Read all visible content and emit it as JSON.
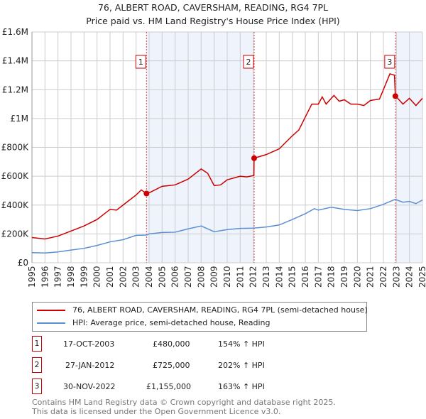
{
  "chart_data": {
    "type": "line",
    "title": "76, ALBERT ROAD, CAVERSHAM, READING, RG4 7PL",
    "subtitle": "Price paid vs. HM Land Registry's House Price Index (HPI)",
    "xlim": [
      1995,
      2025
    ],
    "ylim": [
      0,
      1600000
    ],
    "y_ticks": [
      {
        "v": 0,
        "l": "£0"
      },
      {
        "v": 200000,
        "l": "£200K"
      },
      {
        "v": 400000,
        "l": "£400K"
      },
      {
        "v": 600000,
        "l": "£600K"
      },
      {
        "v": 800000,
        "l": "£800K"
      },
      {
        "v": 1000000,
        "l": "£1M"
      },
      {
        "v": 1200000,
        "l": "£1.2M"
      },
      {
        "v": 1400000,
        "l": "£1.4M"
      },
      {
        "v": 1600000,
        "l": "£1.6M"
      }
    ],
    "x_ticks": [
      "1995",
      "1996",
      "1997",
      "1998",
      "1999",
      "2000",
      "2001",
      "2002",
      "2003",
      "2004",
      "2005",
      "2006",
      "2007",
      "2008",
      "2009",
      "2010",
      "2011",
      "2012",
      "2013",
      "2014",
      "2015",
      "2016",
      "2017",
      "2018",
      "2019",
      "2020",
      "2021",
      "2022",
      "2023",
      "2024",
      "2025"
    ],
    "grid": true,
    "shaded": [
      [
        2003.8,
        2012.07
      ],
      [
        2022.92,
        2025
      ]
    ],
    "series": [
      {
        "name": "76, ALBERT ROAD, CAVERSHAM, READING, RG4 7PL (semi-detached house)",
        "color": "#cc0000",
        "points": [
          [
            1995,
            175000
          ],
          [
            1996,
            165000
          ],
          [
            1997,
            185000
          ],
          [
            1998,
            220000
          ],
          [
            1999,
            255000
          ],
          [
            2000,
            300000
          ],
          [
            2001,
            370000
          ],
          [
            2001.5,
            365000
          ],
          [
            2002,
            400000
          ],
          [
            2003,
            470000
          ],
          [
            2003.4,
            505000
          ],
          [
            2003.8,
            480000
          ],
          [
            2004,
            485000
          ],
          [
            2005,
            530000
          ],
          [
            2005.5,
            535000
          ],
          [
            2006,
            540000
          ],
          [
            2007,
            580000
          ],
          [
            2008,
            650000
          ],
          [
            2008.5,
            620000
          ],
          [
            2009,
            535000
          ],
          [
            2009.5,
            540000
          ],
          [
            2010,
            575000
          ],
          [
            2011,
            600000
          ],
          [
            2011.5,
            595000
          ],
          [
            2012.05,
            605000
          ],
          [
            2012.07,
            725000
          ],
          [
            2013,
            750000
          ],
          [
            2014,
            790000
          ],
          [
            2015,
            880000
          ],
          [
            2015.5,
            920000
          ],
          [
            2016,
            1010000
          ],
          [
            2016.5,
            1100000
          ],
          [
            2017,
            1100000
          ],
          [
            2017.3,
            1150000
          ],
          [
            2017.6,
            1100000
          ],
          [
            2018.2,
            1160000
          ],
          [
            2018.6,
            1120000
          ],
          [
            2019,
            1130000
          ],
          [
            2019.5,
            1100000
          ],
          [
            2020,
            1100000
          ],
          [
            2020.5,
            1090000
          ],
          [
            2021,
            1125000
          ],
          [
            2021.7,
            1135000
          ],
          [
            2022,
            1200000
          ],
          [
            2022.5,
            1310000
          ],
          [
            2022.85,
            1300000
          ],
          [
            2022.92,
            1155000
          ],
          [
            2023,
            1150000
          ],
          [
            2023.5,
            1100000
          ],
          [
            2024,
            1140000
          ],
          [
            2024.5,
            1090000
          ],
          [
            2025,
            1140000
          ]
        ]
      },
      {
        "name": "HPI: Average price, semi-detached house, Reading",
        "color": "#5b8fd4",
        "points": [
          [
            1995,
            70000
          ],
          [
            1996,
            68000
          ],
          [
            1997,
            75000
          ],
          [
            1998,
            88000
          ],
          [
            1999,
            100000
          ],
          [
            2000,
            120000
          ],
          [
            2001,
            145000
          ],
          [
            2002,
            160000
          ],
          [
            2003,
            190000
          ],
          [
            2003.8,
            192000
          ],
          [
            2004,
            200000
          ],
          [
            2005,
            210000
          ],
          [
            2006,
            212000
          ],
          [
            2007,
            235000
          ],
          [
            2008,
            255000
          ],
          [
            2009,
            215000
          ],
          [
            2010,
            230000
          ],
          [
            2011,
            238000
          ],
          [
            2012,
            240000
          ],
          [
            2013,
            248000
          ],
          [
            2014,
            262000
          ],
          [
            2015,
            300000
          ],
          [
            2016,
            340000
          ],
          [
            2016.7,
            375000
          ],
          [
            2017,
            365000
          ],
          [
            2018,
            385000
          ],
          [
            2019,
            370000
          ],
          [
            2020,
            362000
          ],
          [
            2021,
            375000
          ],
          [
            2022,
            405000
          ],
          [
            2022.9,
            440000
          ],
          [
            2023.5,
            420000
          ],
          [
            2024,
            425000
          ],
          [
            2024.5,
            410000
          ],
          [
            2025,
            435000
          ]
        ]
      }
    ],
    "sales": [
      {
        "n": "1",
        "x": 2003.8,
        "y": 480000
      },
      {
        "n": "2",
        "x": 2012.07,
        "y": 725000
      },
      {
        "n": "3",
        "x": 2022.92,
        "y": 1155000
      }
    ]
  },
  "table": [
    {
      "n": "1",
      "date": "17-OCT-2003",
      "price": "£480,000",
      "hpi": "154% ↑ HPI"
    },
    {
      "n": "2",
      "date": "27-JAN-2012",
      "price": "£725,000",
      "hpi": "202% ↑ HPI"
    },
    {
      "n": "3",
      "date": "30-NOV-2022",
      "price": "£1,155,000",
      "hpi": "163% ↑ HPI"
    }
  ],
  "footer": [
    "Contains HM Land Registry data © Crown copyright and database right 2025.",
    "This data is licensed under the Open Government Licence v3.0."
  ]
}
